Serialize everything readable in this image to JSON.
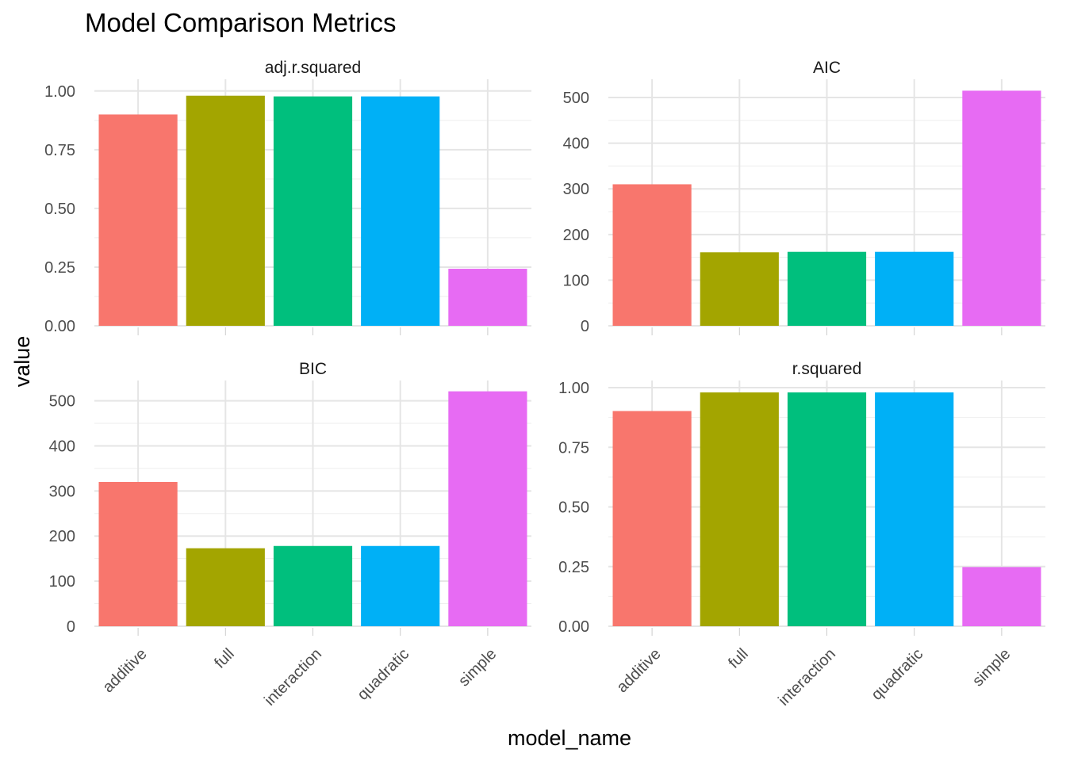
{
  "chart_data": {
    "type": "bar",
    "title": "Model Comparison Metrics",
    "xlabel": "model_name",
    "ylabel": "value",
    "categories": [
      "additive",
      "full",
      "interaction",
      "quadratic",
      "simple"
    ],
    "colors": [
      "#F8766D",
      "#A3A500",
      "#00BF7D",
      "#00B0F6",
      "#E76BF3"
    ],
    "grid": true,
    "legend": "none",
    "facets": [
      {
        "name": "adj.r.squared",
        "values": [
          0.9,
          0.98,
          0.977,
          0.977,
          0.243
        ],
        "ylim": [
          0,
          1.05
        ],
        "ticks": [
          0,
          0.25,
          0.5,
          0.75,
          1.0
        ],
        "tick_labels": [
          "0.00",
          "0.25",
          "0.50",
          "0.75",
          "1.00"
        ],
        "minor": [
          0.125,
          0.375,
          0.625,
          0.875
        ]
      },
      {
        "name": "AIC",
        "values": [
          310,
          161,
          162,
          162,
          515
        ],
        "ylim": [
          0,
          540
        ],
        "ticks": [
          0,
          100,
          200,
          300,
          400,
          500
        ],
        "tick_labels": [
          "0",
          "100",
          "200",
          "300",
          "400",
          "500"
        ],
        "minor": [
          50,
          150,
          250,
          350,
          450
        ]
      },
      {
        "name": "BIC",
        "values": [
          320,
          173,
          178,
          178,
          521
        ],
        "ylim": [
          0,
          545
        ],
        "ticks": [
          0,
          100,
          200,
          300,
          400,
          500
        ],
        "tick_labels": [
          "0",
          "100",
          "200",
          "300",
          "400",
          "500"
        ],
        "minor": [
          50,
          150,
          250,
          350,
          450
        ]
      },
      {
        "name": "r.squared",
        "values": [
          0.902,
          0.98,
          0.98,
          0.98,
          0.248
        ],
        "ylim": [
          0,
          1.03
        ],
        "ticks": [
          0,
          0.25,
          0.5,
          0.75,
          1.0
        ],
        "tick_labels": [
          "0.00",
          "0.25",
          "0.50",
          "0.75",
          "1.00"
        ],
        "minor": [
          0.125,
          0.375,
          0.625,
          0.875
        ]
      }
    ]
  }
}
